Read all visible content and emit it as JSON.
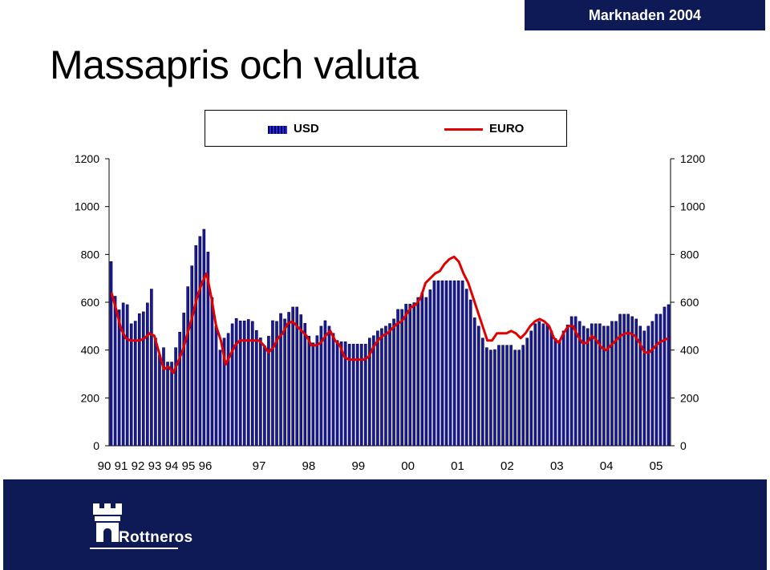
{
  "header": {
    "badge": "Marknaden 2004",
    "title": "Massapris och valuta"
  },
  "logo": {
    "text": "Rottneros"
  },
  "chart_data": {
    "type": "bar",
    "title": "Massapris och valuta",
    "legend": {
      "position": "top-center",
      "entries": [
        "USD",
        "EURO"
      ]
    },
    "grid": false,
    "ylim": [
      0,
      1200
    ],
    "yticks": [
      0,
      200,
      400,
      600,
      800,
      1000,
      1200
    ],
    "xlabels": [
      "90",
      "91",
      "92",
      "93",
      "94",
      "95",
      "96",
      "97",
      "98",
      "99",
      "00",
      "01",
      "02",
      "03",
      "04",
      "05"
    ],
    "series": [
      {
        "name": "USD",
        "type": "bar",
        "color": "#1a1a9c",
        "values": [
          770,
          625,
          568,
          597,
          590,
          510,
          521,
          552,
          560,
          597,
          655,
          450,
          380,
          410,
          350,
          350,
          410,
          475,
          555,
          665,
          752,
          837,
          875,
          905,
          810,
          620,
          500,
          400,
          450,
          470,
          510,
          532,
          522,
          522,
          528,
          520,
          482,
          451,
          418,
          458,
          523,
          520,
          553,
          530,
          558,
          580,
          580,
          548,
          512,
          458,
          430,
          460,
          500,
          523,
          500,
          470,
          440,
          435,
          435,
          425,
          425,
          425,
          425,
          425,
          450,
          460,
          480,
          490,
          500,
          511,
          530,
          570,
          570,
          592,
          592,
          598,
          620,
          640,
          620,
          652,
          690,
          690,
          690,
          690,
          690,
          690,
          690,
          690,
          655,
          610,
          535,
          500,
          450,
          410,
          400,
          402,
          420,
          420,
          420,
          420,
          400,
          400,
          420,
          450,
          480,
          510,
          520,
          510,
          510,
          480,
          448,
          440,
          480,
          505,
          540,
          540,
          520,
          500,
          490,
          510,
          510,
          510,
          500,
          500,
          520,
          520,
          550,
          550,
          550,
          540,
          530,
          500,
          480,
          500,
          520,
          550,
          550,
          580,
          590
        ]
      },
      {
        "name": "EURO",
        "type": "line",
        "color": "#e00000",
        "values": [
          640,
          570,
          490,
          450,
          440,
          440,
          440,
          450,
          470,
          460,
          390,
          320,
          330,
          305,
          350,
          400,
          470,
          540,
          620,
          680,
          720,
          620,
          500,
          440,
          340,
          380,
          420,
          440,
          440,
          440,
          440,
          440,
          420,
          390,
          410,
          450,
          470,
          510,
          520,
          500,
          480,
          460,
          420,
          420,
          430,
          460,
          480,
          440,
          420,
          370,
          360,
          360,
          360,
          360,
          370,
          410,
          440,
          460,
          470,
          490,
          510,
          520,
          550,
          580,
          590,
          620,
          680,
          700,
          720,
          730,
          760,
          780,
          790,
          770,
          720,
          680,
          620,
          560,
          500,
          440,
          440,
          470,
          470,
          470,
          480,
          470,
          450,
          470,
          500,
          520,
          530,
          520,
          500,
          450,
          430,
          470,
          500,
          500,
          460,
          430,
          430,
          460,
          440,
          410,
          400,
          420,
          440,
          460,
          470,
          470,
          460,
          430,
          390,
          390,
          410,
          430,
          440,
          450
        ]
      }
    ]
  }
}
